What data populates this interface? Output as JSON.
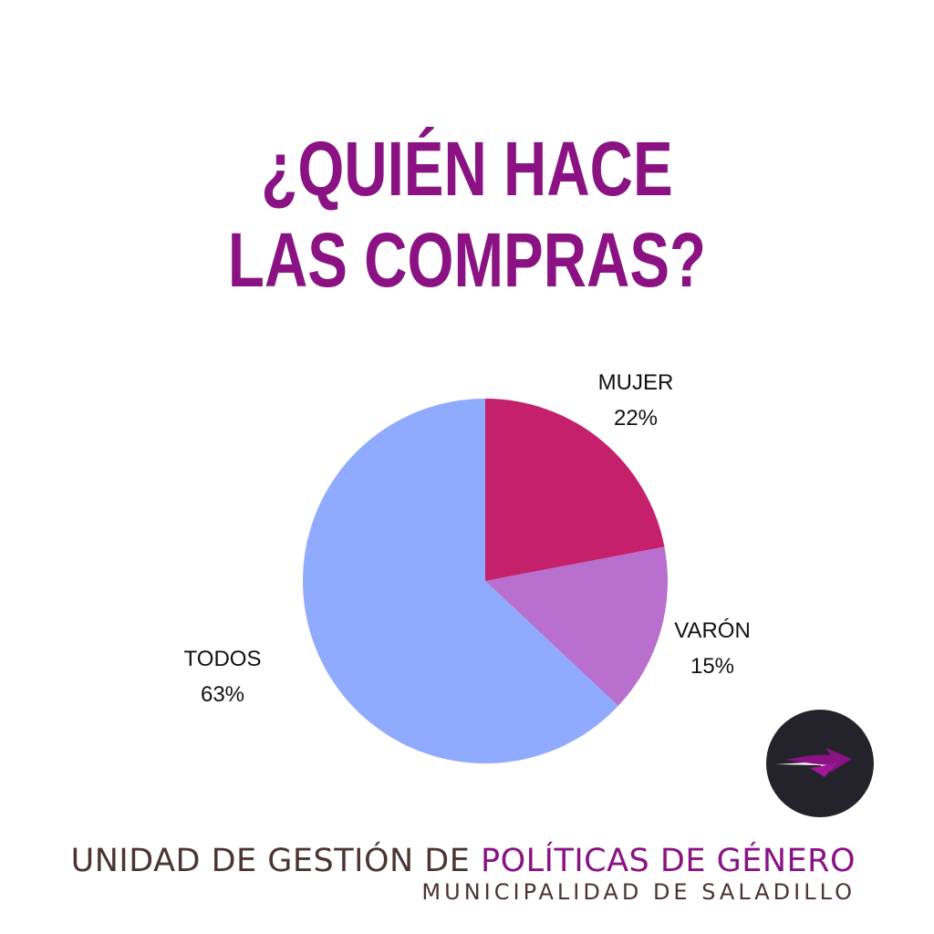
{
  "title": {
    "line1": "¿QUIÉN HACE",
    "line2": "LAS COMPRAS?",
    "color": "#8a1283"
  },
  "chart_data": {
    "type": "pie",
    "title": "¿QUIÉN HACE LAS COMPRAS?",
    "slices": [
      {
        "label": "MUJER",
        "value": 22,
        "value_label": "22%",
        "color": "#c4206b"
      },
      {
        "label": "VARÓN",
        "value": 15,
        "value_label": "15%",
        "color": "#b86fcd"
      },
      {
        "label": "TODOS",
        "value": 63,
        "value_label": "63%",
        "color": "#90abfd"
      }
    ],
    "start_angle": "12 o'clock",
    "direction": "clockwise",
    "legend": "none (labels beside slices)"
  },
  "badge": {
    "icon": "arrow-right-icon",
    "background": "#24232b",
    "accent": "#8a1283"
  },
  "footer": {
    "line1_part1": "UNIDAD DE GESTIÓN DE ",
    "line1_part2": "POLÍTICAS DE GÉNERO",
    "line2": "MUNICIPALIDAD DE SALADILLO"
  }
}
